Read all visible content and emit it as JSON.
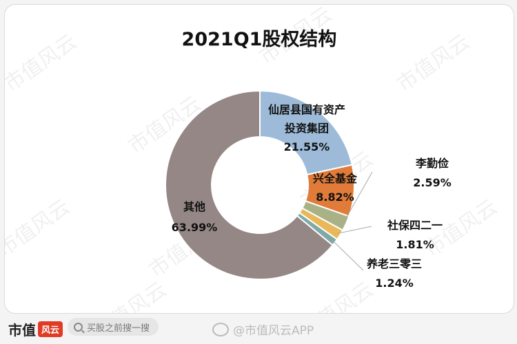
{
  "chart_data": {
    "type": "pie",
    "title": "2021Q1股权结构",
    "slices": [
      {
        "name": "仙居县国有资产投资集团",
        "label_lines": [
          "仙居县国有资产",
          "投资集团",
          "21.55%"
        ],
        "value": 21.55,
        "value_label": "21.55%",
        "color": "#9dbbd8"
      },
      {
        "name": "兴全基金",
        "label_lines": [
          "兴全基金",
          "8.82%"
        ],
        "value": 8.82,
        "value_label": "8.82%",
        "color": "#e07b39"
      },
      {
        "name": "李勤俭",
        "label_lines": [
          "李勤俭",
          "2.59%"
        ],
        "value": 2.59,
        "value_label": "2.59%",
        "color": "#a9b287"
      },
      {
        "name": "社保四二一",
        "label_lines": [
          "社保四二一",
          "1.81%"
        ],
        "value": 1.81,
        "value_label": "1.81%",
        "color": "#e8b85a"
      },
      {
        "name": "养老三零三",
        "label_lines": [
          "养老三零三",
          "1.24%"
        ],
        "value": 1.24,
        "value_label": "1.24%",
        "color": "#7fa9a6"
      },
      {
        "name": "其他",
        "label_lines": [
          "其他",
          "63.99%"
        ],
        "value": 63.99,
        "value_label": "63.99%",
        "color": "#948786"
      }
    ]
  },
  "watermark_text": "市值风云",
  "footer": {
    "brand": "市值",
    "brand_mark": "风云",
    "search_placeholder": "买股之前搜一搜",
    "weibo_handle": "@市值风云APP"
  }
}
